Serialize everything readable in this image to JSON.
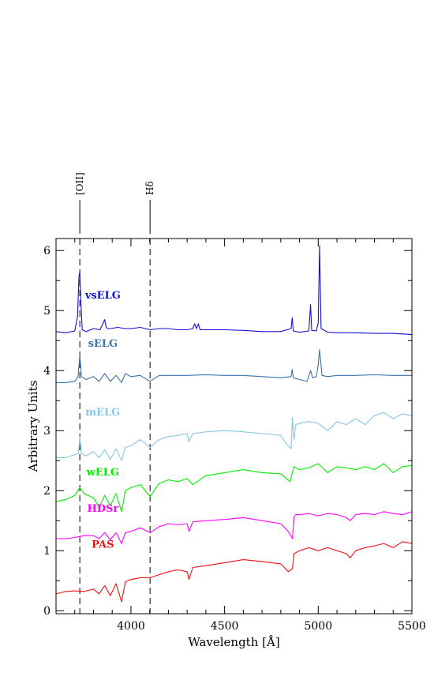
{
  "chart_data": {
    "type": "line",
    "xlabel": "Wavelength [Å]",
    "ylabel": "Arbitrary Units",
    "xlim": [
      3600,
      5500
    ],
    "ylim": [
      -0.05,
      6.2
    ],
    "x_ticks": [
      4000,
      4500,
      5000,
      5500
    ],
    "y_ticks": [
      0,
      1,
      2,
      3,
      4,
      5,
      6
    ],
    "grid": false,
    "reference_lines": [
      {
        "label": "[OII]",
        "x": 3727
      },
      {
        "label": "Hδ",
        "x": 4102
      }
    ],
    "series": [
      {
        "name": "vsELG",
        "color": "#1010d8",
        "label_at": [
          3850,
          5.2
        ],
        "x": [
          3600,
          3650,
          3700,
          3715,
          3722,
          3727,
          3732,
          3740,
          3760,
          3800,
          3835,
          3850,
          3860,
          3868,
          3875,
          3890,
          3930,
          3970,
          4000,
          4050,
          4102,
          4150,
          4200,
          4250,
          4300,
          4330,
          4340,
          4350,
          4360,
          4365,
          4370,
          4400,
          4500,
          4600,
          4700,
          4800,
          4855,
          4861,
          4867,
          4900,
          4950,
          4959,
          4965,
          4990,
          5000,
          5007,
          5015,
          5050,
          5100,
          5200,
          5300,
          5400,
          5500
        ],
        "values": [
          4.65,
          4.63,
          4.66,
          4.9,
          5.55,
          5.65,
          5.2,
          4.68,
          4.65,
          4.7,
          4.68,
          4.78,
          4.85,
          4.72,
          4.7,
          4.7,
          4.72,
          4.7,
          4.7,
          4.72,
          4.68,
          4.7,
          4.7,
          4.68,
          4.68,
          4.7,
          4.78,
          4.7,
          4.78,
          4.72,
          4.68,
          4.68,
          4.68,
          4.67,
          4.65,
          4.65,
          4.7,
          4.88,
          4.66,
          4.64,
          4.66,
          5.1,
          4.67,
          4.66,
          4.8,
          6.08,
          4.7,
          4.64,
          4.63,
          4.63,
          4.62,
          4.62,
          4.6
        ]
      },
      {
        "name": "sELG",
        "color": "#3b72a8",
        "label_at": [
          3850,
          4.4
        ],
        "x": [
          3600,
          3650,
          3700,
          3718,
          3727,
          3736,
          3760,
          3800,
          3830,
          3860,
          3890,
          3920,
          3950,
          3970,
          4000,
          4050,
          4102,
          4150,
          4200,
          4300,
          4400,
          4500,
          4600,
          4700,
          4800,
          4855,
          4861,
          4867,
          4900,
          4940,
          4959,
          4970,
          4990,
          5000,
          5007,
          5020,
          5050,
          5100,
          5200,
          5300,
          5400,
          5500
        ],
        "values": [
          3.8,
          3.8,
          3.82,
          3.9,
          4.25,
          3.9,
          3.85,
          3.9,
          3.82,
          3.95,
          3.82,
          3.92,
          3.8,
          3.95,
          3.9,
          3.92,
          3.82,
          3.92,
          3.92,
          3.92,
          3.93,
          3.92,
          3.92,
          3.9,
          3.88,
          3.9,
          4.02,
          3.88,
          3.85,
          3.82,
          4.0,
          3.88,
          3.9,
          4.1,
          4.35,
          3.92,
          3.9,
          3.92,
          3.92,
          3.93,
          3.92,
          3.92
        ]
      },
      {
        "name": "mELG",
        "color": "#87c5e2",
        "label_at": [
          3850,
          3.25
        ],
        "x": [
          3600,
          3650,
          3700,
          3720,
          3727,
          3735,
          3760,
          3800,
          3830,
          3860,
          3890,
          3920,
          3950,
          3970,
          4000,
          4050,
          4102,
          4150,
          4200,
          4250,
          4300,
          4310,
          4330,
          4400,
          4500,
          4600,
          4700,
          4800,
          4830,
          4855,
          4862,
          4870,
          4880,
          4900,
          4950,
          5000,
          5050,
          5100,
          5150,
          5200,
          5250,
          5300,
          5350,
          5400,
          5450,
          5500
        ],
        "values": [
          2.55,
          2.55,
          2.6,
          2.62,
          2.9,
          2.62,
          2.58,
          2.65,
          2.55,
          2.68,
          2.52,
          2.7,
          2.5,
          2.72,
          2.75,
          2.85,
          2.72,
          2.85,
          2.9,
          2.92,
          2.95,
          2.82,
          2.95,
          2.98,
          3.0,
          2.98,
          2.95,
          2.92,
          2.78,
          2.7,
          3.22,
          2.85,
          3.1,
          3.12,
          3.15,
          3.12,
          3.0,
          3.15,
          3.1,
          3.2,
          3.1,
          3.25,
          3.3,
          3.2,
          3.28,
          3.25
        ]
      },
      {
        "name": "wELG",
        "color": "#00ee00",
        "label_at": [
          3850,
          2.25
        ],
        "x": [
          3600,
          3650,
          3700,
          3727,
          3750,
          3800,
          3830,
          3860,
          3890,
          3920,
          3950,
          3970,
          4000,
          4050,
          4102,
          4150,
          4200,
          4250,
          4300,
          4330,
          4400,
          4500,
          4600,
          4700,
          4800,
          4850,
          4870,
          4900,
          4950,
          5000,
          5050,
          5100,
          5150,
          5200,
          5250,
          5300,
          5350,
          5400,
          5450,
          5500
        ],
        "values": [
          1.82,
          1.85,
          1.92,
          2.05,
          1.95,
          1.88,
          1.72,
          1.92,
          1.75,
          1.95,
          1.65,
          2.0,
          2.05,
          2.1,
          1.9,
          2.12,
          2.18,
          2.15,
          2.2,
          2.1,
          2.25,
          2.3,
          2.35,
          2.3,
          2.28,
          2.15,
          2.4,
          2.35,
          2.38,
          2.45,
          2.3,
          2.4,
          2.38,
          2.35,
          2.4,
          2.35,
          2.45,
          2.3,
          2.4,
          2.42
        ]
      },
      {
        "name": "HDSr",
        "color": "#ff00ff",
        "label_at": [
          3850,
          1.65
        ],
        "x": [
          3600,
          3650,
          3700,
          3750,
          3800,
          3830,
          3860,
          3890,
          3920,
          3950,
          3970,
          4000,
          4050,
          4102,
          4150,
          4200,
          4250,
          4300,
          4310,
          4330,
          4400,
          4500,
          4600,
          4700,
          4800,
          4840,
          4862,
          4870,
          4880,
          4900,
          4950,
          5000,
          5050,
          5100,
          5150,
          5170,
          5200,
          5250,
          5300,
          5350,
          5400,
          5450,
          5500
        ],
        "values": [
          1.2,
          1.2,
          1.22,
          1.25,
          1.25,
          1.2,
          1.3,
          1.18,
          1.3,
          1.12,
          1.3,
          1.32,
          1.38,
          1.3,
          1.4,
          1.45,
          1.43,
          1.45,
          1.32,
          1.48,
          1.5,
          1.52,
          1.55,
          1.5,
          1.45,
          1.32,
          1.2,
          1.55,
          1.6,
          1.6,
          1.62,
          1.58,
          1.62,
          1.6,
          1.55,
          1.5,
          1.6,
          1.62,
          1.6,
          1.65,
          1.62,
          1.6,
          1.65
        ]
      },
      {
        "name": "PAS",
        "color": "#ee1010",
        "label_at": [
          3850,
          1.05
        ],
        "x": [
          3600,
          3650,
          3700,
          3750,
          3800,
          3830,
          3860,
          3890,
          3920,
          3950,
          3970,
          4000,
          4050,
          4102,
          4150,
          4200,
          4250,
          4300,
          4310,
          4330,
          4400,
          4500,
          4600,
          4700,
          4800,
          4840,
          4862,
          4870,
          4900,
          4950,
          5000,
          5050,
          5100,
          5150,
          5170,
          5200,
          5250,
          5300,
          5350,
          5400,
          5450,
          5500
        ],
        "values": [
          0.28,
          0.32,
          0.33,
          0.32,
          0.36,
          0.28,
          0.42,
          0.25,
          0.45,
          0.15,
          0.48,
          0.52,
          0.55,
          0.55,
          0.6,
          0.65,
          0.68,
          0.65,
          0.52,
          0.72,
          0.75,
          0.8,
          0.85,
          0.82,
          0.78,
          0.65,
          0.7,
          0.95,
          1.0,
          1.05,
          1.0,
          1.05,
          1.0,
          0.95,
          0.88,
          1.0,
          1.05,
          1.08,
          1.12,
          1.05,
          1.15,
          1.12
        ]
      }
    ]
  }
}
